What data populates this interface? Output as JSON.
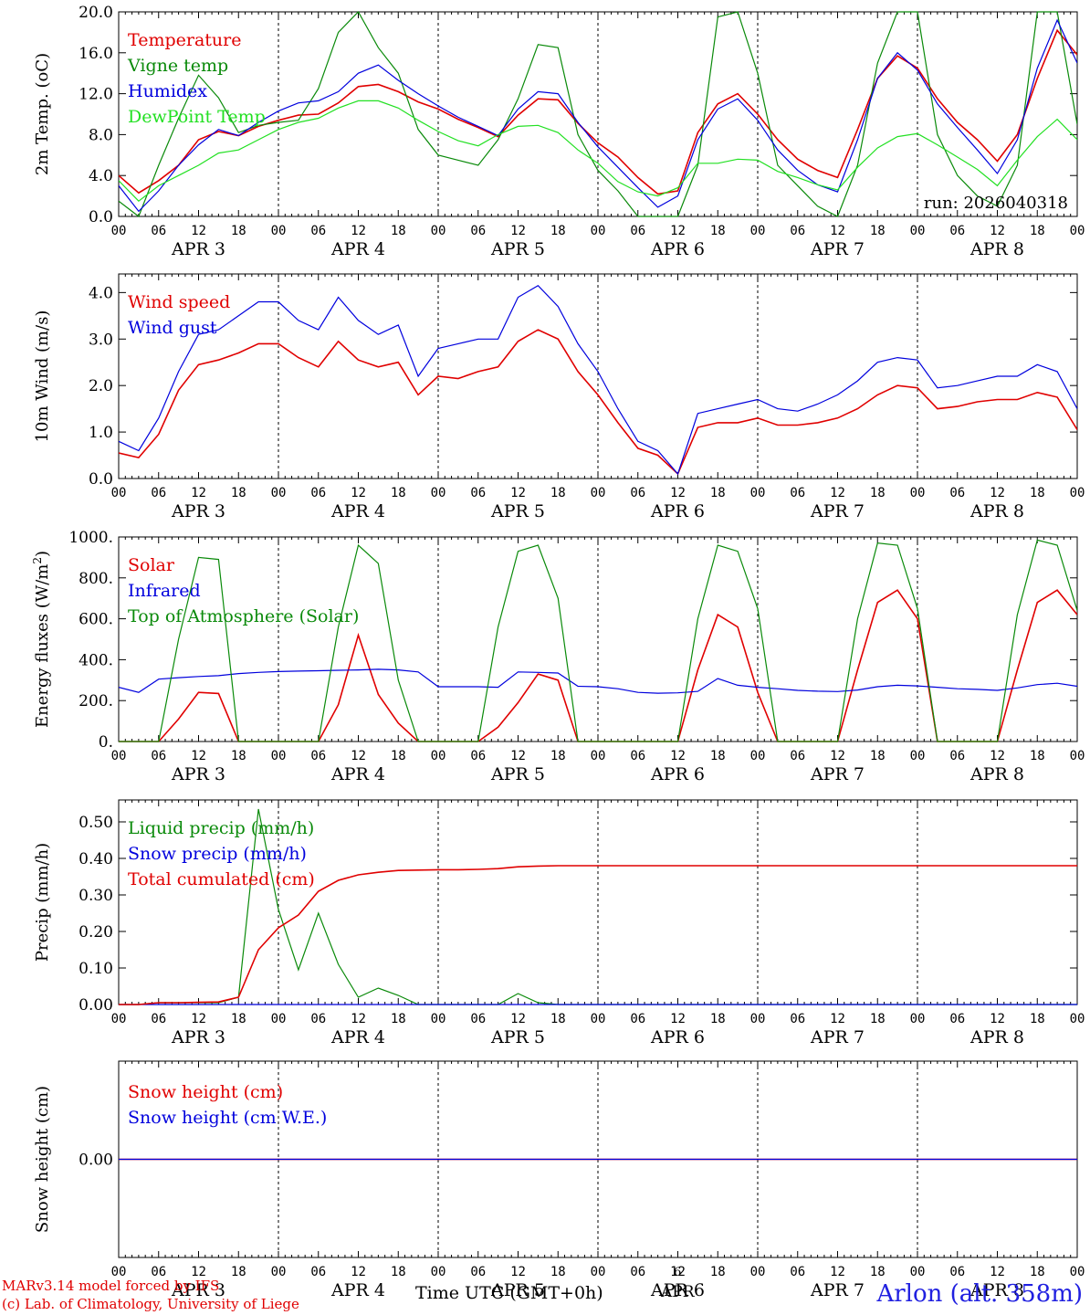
{
  "station": "Arlon (alt. 358m)",
  "credits": [
    "MARv3.14 model forced by IFS",
    "(c) Lab. of Climatology, University of Liege"
  ],
  "time_axis_label": "Time UTC (GMT+0h)",
  "center_day": "6",
  "center_month": "APR",
  "hour_ticks": [
    "00",
    "06",
    "12",
    "18"
  ],
  "days": [
    "APR 3",
    "APR 4",
    "APR 5",
    "APR 6",
    "APR 7",
    "APR 8"
  ],
  "colors": {
    "red": "#e00000",
    "blue": "#0000dd",
    "green": "#0a8a0a",
    "lightgreen": "#22e022"
  },
  "chart_data": [
    {
      "type": "line",
      "ylabel": "2m Temp. (oC)",
      "ylabel_sup": "",
      "ylim": [
        0,
        20
      ],
      "yticks": [
        "0.0",
        "4.0",
        "8.0",
        "12.0",
        "16.0",
        "20.0"
      ],
      "annotation": "run: 2026040318",
      "x_hours": [
        0,
        3,
        6,
        9,
        12,
        15,
        18,
        21,
        24,
        27,
        30,
        33,
        36,
        39,
        42,
        45,
        48,
        51,
        54,
        57,
        60,
        63,
        66,
        69,
        72,
        75,
        78,
        81,
        84,
        87,
        90,
        93,
        96,
        99,
        102,
        105,
        108,
        111,
        114,
        117,
        120,
        123,
        126,
        129,
        132,
        135,
        138,
        141,
        144
      ],
      "series": [
        {
          "name": "Temperature",
          "color": "red",
          "values": [
            4.0,
            2.3,
            3.5,
            5.0,
            7.5,
            8.3,
            7.9,
            8.8,
            9.4,
            9.9,
            10.0,
            11.1,
            12.7,
            12.9,
            12.2,
            11.2,
            10.5,
            9.5,
            8.7,
            7.8,
            9.9,
            11.5,
            11.4,
            9.1,
            7.2,
            5.8,
            3.8,
            2.2,
            2.5,
            8.2,
            11.0,
            12.0,
            10.0,
            7.5,
            5.6,
            4.5,
            3.8,
            8.5,
            13.5,
            15.7,
            14.5,
            11.5,
            9.2,
            7.5,
            5.4,
            8.0,
            13.5,
            18.2,
            15.8
          ]
        },
        {
          "name": "Vigne temp",
          "color": "green",
          "values": [
            1.5,
            0.0,
            5.0,
            9.6,
            13.8,
            11.6,
            8.2,
            8.9,
            9.2,
            9.4,
            12.5,
            18.0,
            20.0,
            16.5,
            14.0,
            8.5,
            6.0,
            5.5,
            5.0,
            7.5,
            11.5,
            16.8,
            16.5,
            8.0,
            4.5,
            2.5,
            0.0,
            0.0,
            0.0,
            5.0,
            19.5,
            20.0,
            14.0,
            5.0,
            3.0,
            1.0,
            0.0,
            5.0,
            15.0,
            20.0,
            20.0,
            8.0,
            4.0,
            2.0,
            1.0,
            5.0,
            20.0,
            20.0,
            9.0
          ]
        },
        {
          "name": "Humidex",
          "color": "blue",
          "values": [
            3.0,
            0.5,
            2.5,
            5.0,
            7.0,
            8.5,
            7.9,
            9.2,
            10.3,
            11.1,
            11.3,
            12.2,
            14.0,
            14.8,
            13.3,
            12.0,
            10.8,
            9.7,
            8.8,
            7.9,
            10.5,
            12.2,
            12.0,
            9.2,
            6.8,
            4.8,
            2.8,
            0.9,
            2.0,
            7.5,
            10.5,
            11.5,
            9.4,
            6.5,
            4.5,
            3.1,
            2.4,
            7.5,
            13.5,
            16.0,
            14.3,
            11.0,
            8.7,
            6.5,
            4.2,
            7.5,
            14.5,
            19.2,
            15.0
          ]
        },
        {
          "name": "DewPoint Temp",
          "color": "lightgreen",
          "values": [
            3.5,
            1.5,
            3.0,
            4.0,
            5.0,
            6.2,
            6.5,
            7.5,
            8.5,
            9.2,
            9.6,
            10.6,
            11.3,
            11.3,
            10.6,
            9.4,
            8.3,
            7.4,
            6.9,
            8.0,
            8.8,
            8.9,
            8.2,
            6.5,
            5.2,
            3.4,
            2.4,
            2.0,
            2.8,
            5.2,
            5.2,
            5.6,
            5.5,
            4.4,
            3.8,
            3.1,
            2.6,
            4.8,
            6.7,
            7.8,
            8.1,
            7.0,
            5.8,
            4.6,
            3.0,
            5.5,
            7.8,
            9.5,
            7.5
          ]
        }
      ]
    },
    {
      "type": "line",
      "ylabel": "10m Wind (m/s)",
      "ylabel_sup": "",
      "ylim": [
        0,
        4.4
      ],
      "yticks": [
        "0.0",
        "1.0",
        "2.0",
        "3.0",
        "4.0"
      ],
      "x_hours": [
        0,
        3,
        6,
        9,
        12,
        15,
        18,
        21,
        24,
        27,
        30,
        33,
        36,
        39,
        42,
        45,
        48,
        51,
        54,
        57,
        60,
        63,
        66,
        69,
        72,
        75,
        78,
        81,
        84,
        87,
        90,
        93,
        96,
        99,
        102,
        105,
        108,
        111,
        114,
        117,
        120,
        123,
        126,
        129,
        132,
        135,
        138,
        141,
        144
      ],
      "series": [
        {
          "name": "Wind speed",
          "color": "red",
          "values": [
            0.55,
            0.45,
            0.95,
            1.9,
            2.45,
            2.55,
            2.7,
            2.9,
            2.9,
            2.6,
            2.4,
            2.95,
            2.55,
            2.4,
            2.5,
            1.8,
            2.2,
            2.15,
            2.3,
            2.4,
            2.95,
            3.2,
            3.0,
            2.3,
            1.8,
            1.2,
            0.65,
            0.5,
            0.1,
            1.1,
            1.2,
            1.2,
            1.3,
            1.15,
            1.15,
            1.2,
            1.3,
            1.5,
            1.8,
            2.0,
            1.95,
            1.5,
            1.55,
            1.65,
            1.7,
            1.7,
            1.85,
            1.75,
            1.05
          ]
        },
        {
          "name": "Wind gust",
          "color": "blue",
          "values": [
            0.8,
            0.6,
            1.3,
            2.3,
            3.1,
            3.2,
            3.5,
            3.8,
            3.8,
            3.4,
            3.2,
            3.9,
            3.4,
            3.1,
            3.3,
            2.2,
            2.8,
            2.9,
            3.0,
            3.0,
            3.9,
            4.15,
            3.7,
            2.9,
            2.3,
            1.5,
            0.8,
            0.6,
            0.1,
            1.4,
            1.5,
            1.6,
            1.7,
            1.5,
            1.45,
            1.6,
            1.8,
            2.1,
            2.5,
            2.6,
            2.55,
            1.95,
            2.0,
            2.1,
            2.2,
            2.2,
            2.45,
            2.3,
            1.5
          ]
        }
      ]
    },
    {
      "type": "line",
      "ylabel": "Energy fluxes (W/m",
      "ylabel_sup": "2",
      "ylim": [
        0,
        1000
      ],
      "yticks": [
        "0.",
        "200.",
        "400.",
        "600.",
        "800.",
        "1000."
      ],
      "x_hours": [
        0,
        3,
        6,
        9,
        12,
        15,
        18,
        21,
        24,
        27,
        30,
        33,
        36,
        39,
        42,
        45,
        48,
        51,
        54,
        57,
        60,
        63,
        66,
        69,
        72,
        75,
        78,
        81,
        84,
        87,
        90,
        93,
        96,
        99,
        102,
        105,
        108,
        111,
        114,
        117,
        120,
        123,
        126,
        129,
        132,
        135,
        138,
        141,
        144
      ],
      "series": [
        {
          "name": "Solar",
          "color": "red",
          "values": [
            0,
            0,
            0,
            110,
            240,
            235,
            0,
            0,
            0,
            0,
            0,
            180,
            520,
            230,
            90,
            0,
            0,
            0,
            0,
            70,
            190,
            330,
            300,
            0,
            0,
            0,
            0,
            0,
            0,
            350,
            620,
            560,
            240,
            0,
            0,
            0,
            0,
            350,
            680,
            740,
            600,
            0,
            0,
            0,
            0,
            350,
            680,
            740,
            620
          ]
        },
        {
          "name": "Infrared",
          "color": "blue",
          "values": [
            265,
            240,
            305,
            312,
            318,
            322,
            332,
            338,
            342,
            344,
            346,
            348,
            350,
            353,
            350,
            340,
            268,
            268,
            268,
            265,
            340,
            338,
            335,
            270,
            268,
            258,
            240,
            236,
            238,
            245,
            308,
            275,
            265,
            258,
            250,
            246,
            244,
            252,
            268,
            275,
            272,
            265,
            258,
            255,
            250,
            262,
            278,
            285,
            270
          ]
        },
        {
          "name": "Top of Atmosphere (Solar)",
          "color": "green",
          "values": [
            0,
            0,
            0,
            500,
            900,
            890,
            0,
            0,
            0,
            0,
            0,
            560,
            960,
            870,
            300,
            0,
            0,
            0,
            0,
            560,
            930,
            960,
            700,
            0,
            0,
            0,
            0,
            0,
            0,
            600,
            960,
            930,
            650,
            0,
            0,
            0,
            0,
            600,
            970,
            960,
            650,
            0,
            0,
            0,
            0,
            620,
            985,
            960,
            640
          ]
        }
      ]
    },
    {
      "type": "line",
      "ylabel": "Precip (mm/h)",
      "ylabel_sup": "",
      "ylim": [
        0,
        0.56
      ],
      "yticks": [
        "0.00",
        "0.10",
        "0.20",
        "0.30",
        "0.40",
        "0.50"
      ],
      "x_hours": [
        0,
        3,
        6,
        9,
        12,
        15,
        18,
        21,
        24,
        27,
        30,
        33,
        36,
        39,
        42,
        45,
        48,
        51,
        54,
        57,
        60,
        63,
        66,
        69,
        72,
        75,
        78,
        81,
        84,
        87,
        90,
        93,
        96,
        99,
        102,
        105,
        108,
        111,
        114,
        117,
        120,
        123,
        126,
        129,
        132,
        135,
        138,
        141,
        144
      ],
      "series": [
        {
          "name": "Liquid precip (mm/h)",
          "color": "green",
          "values": [
            0,
            0,
            0.005,
            0.005,
            0.005,
            0.005,
            0.02,
            0.535,
            0.26,
            0.095,
            0.25,
            0.11,
            0.02,
            0.045,
            0.025,
            0,
            0,
            0,
            0,
            0,
            0.03,
            0.005,
            0,
            0,
            0,
            0,
            0,
            0,
            0,
            0,
            0,
            0,
            0,
            0,
            0,
            0,
            0,
            0,
            0,
            0,
            0,
            0,
            0,
            0,
            0,
            0,
            0,
            0,
            0
          ]
        },
        {
          "name": "Snow precip (mm/h)",
          "color": "blue",
          "values": [
            0,
            0,
            0,
            0,
            0,
            0,
            0,
            0,
            0,
            0,
            0,
            0,
            0,
            0,
            0,
            0,
            0,
            0,
            0,
            0,
            0,
            0,
            0,
            0,
            0,
            0,
            0,
            0,
            0,
            0,
            0,
            0,
            0,
            0,
            0,
            0,
            0,
            0,
            0,
            0,
            0,
            0,
            0,
            0,
            0,
            0,
            0,
            0,
            0
          ]
        },
        {
          "name": "Total cumulated (cm)",
          "color": "red",
          "values": [
            0,
            0,
            0.005,
            0.005,
            0.006,
            0.007,
            0.02,
            0.15,
            0.21,
            0.245,
            0.31,
            0.34,
            0.355,
            0.362,
            0.367,
            0.368,
            0.369,
            0.369,
            0.37,
            0.372,
            0.377,
            0.379,
            0.38,
            0.38,
            0.38,
            0.38,
            0.38,
            0.38,
            0.38,
            0.38,
            0.38,
            0.38,
            0.38,
            0.38,
            0.38,
            0.38,
            0.38,
            0.38,
            0.38,
            0.38,
            0.38,
            0.38,
            0.38,
            0.38,
            0.38,
            0.38,
            0.38,
            0.38,
            0.38
          ]
        }
      ]
    },
    {
      "type": "line",
      "ylabel": "Snow height (cm)",
      "ylabel_sup": "",
      "ylim": [
        -1,
        1
      ],
      "yticks": [
        "0.00"
      ],
      "ytick_values": [
        0
      ],
      "x_hours": [
        0,
        144
      ],
      "series": [
        {
          "name": "Snow height (cm)",
          "color": "red",
          "values": [
            0,
            0
          ]
        },
        {
          "name": "Snow height (cm W.E.)",
          "color": "blue",
          "values": [
            0,
            0
          ]
        }
      ]
    }
  ]
}
